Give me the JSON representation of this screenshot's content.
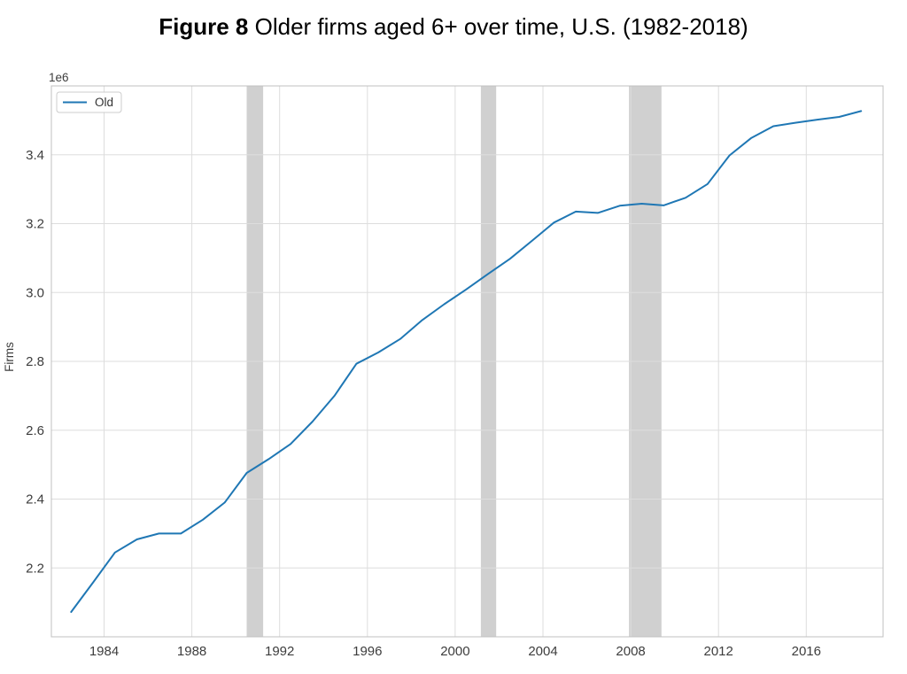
{
  "figure": {
    "title_prefix": "Figure 8",
    "title_rest": " Older firms aged 6+ over time, U.S. (1982-2018)"
  },
  "chart_data": {
    "type": "line",
    "title": "Figure 8 Older firms aged 6+ over time, U.S. (1982-2018)",
    "xlabel": "",
    "ylabel": "Firms",
    "y_axis_offset_label": "1e6",
    "x": [
      1982,
      1983,
      1984,
      1985,
      1986,
      1987,
      1988,
      1989,
      1990,
      1991,
      1992,
      1993,
      1994,
      1995,
      1996,
      1997,
      1998,
      1999,
      2000,
      2001,
      2002,
      2003,
      2004,
      2005,
      2006,
      2007,
      2008,
      2009,
      2010,
      2011,
      2012,
      2013,
      2014,
      2015,
      2016,
      2017,
      2018
    ],
    "series": [
      {
        "name": "Old",
        "color": "#1f77b4",
        "values": [
          2072000,
          2158000,
          2245000,
          2283000,
          2300000,
          2300000,
          2340000,
          2390000,
          2476000,
          2516000,
          2560000,
          2625000,
          2700000,
          2793000,
          2826000,
          2865000,
          2920000,
          2966000,
          3009000,
          3054000,
          3098000,
          3150000,
          3203000,
          3235000,
          3231000,
          3252000,
          3258000,
          3253000,
          3275000,
          3315000,
          3398000,
          3449000,
          3483000,
          3493000,
          3502000,
          3510000,
          3527000
        ]
      }
    ],
    "x_tick_labels": [
      "1984",
      "1988",
      "1992",
      "1996",
      "2000",
      "2004",
      "2008",
      "2012",
      "2016"
    ],
    "x_tick_years": [
      1984,
      1988,
      1992,
      1996,
      2000,
      2004,
      2008,
      2012,
      2016
    ],
    "y_tick_labels": [
      "2.2",
      "2.4",
      "2.6",
      "2.8",
      "3.0",
      "3.2",
      "3.4"
    ],
    "y_tick_values_millions": [
      2.2,
      2.4,
      2.6,
      2.8,
      3.0,
      3.2,
      3.4
    ],
    "xlim": [
      1981.6,
      2019.5
    ],
    "ylim_millions": [
      2.0,
      3.6
    ],
    "grid": true,
    "legend": {
      "position": "upper left",
      "entries": [
        "Old"
      ]
    },
    "recession_bands": [
      [
        1990.5,
        1991.25
      ],
      [
        2001.17,
        2001.87
      ],
      [
        2007.92,
        2009.4
      ]
    ],
    "colors": {
      "line": "#1f77b4",
      "recession_band": "#d0d0d0",
      "grid": "#dddddd",
      "spine": "#c0c0c0",
      "tick_text": "#3d3d3d",
      "legend_border": "#cccccc"
    }
  }
}
